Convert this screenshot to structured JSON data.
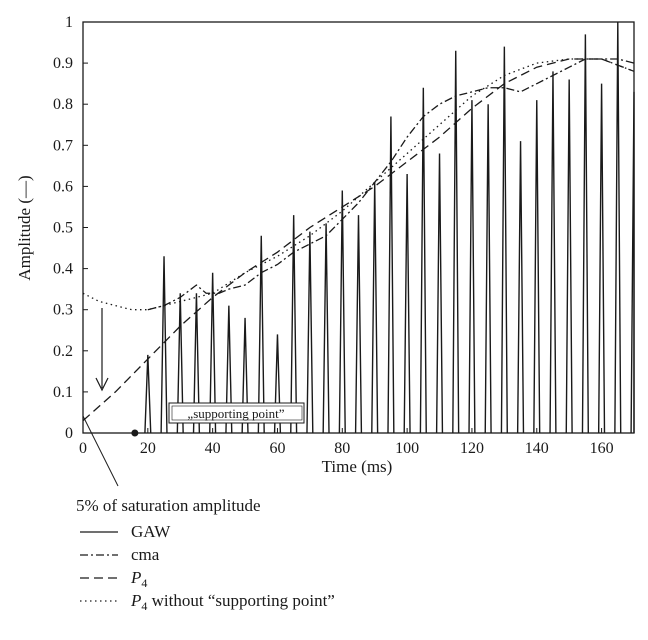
{
  "chart_data": {
    "type": "line",
    "xlabel": "Time (ms)",
    "ylabel": "Amplitude (—)",
    "xlim": [
      0,
      170
    ],
    "ylim": [
      0,
      1
    ],
    "x_ticks": [
      "0",
      "20",
      "40",
      "60",
      "80",
      "100",
      "120",
      "140",
      "160"
    ],
    "y_ticks": [
      "0",
      "0.1",
      "0.2",
      "0.3",
      "0.4",
      "0.5",
      "0.6",
      "0.7",
      "0.8",
      "0.9",
      "1"
    ],
    "grid": false,
    "legend_position": "below",
    "annotations": {
      "saturation": "5% of saturation amplitude",
      "supporting_point": "„supporting point”",
      "supporting_point_xy": [
        16,
        0
      ]
    },
    "series": [
      {
        "name": "GAW",
        "style": "solid",
        "pulses": [
          [
            20,
            0.19
          ],
          [
            25,
            0.43
          ],
          [
            30,
            0.34
          ],
          [
            35,
            0.34
          ],
          [
            40,
            0.39
          ],
          [
            45,
            0.31
          ],
          [
            50,
            0.28
          ],
          [
            55,
            0.48
          ],
          [
            60,
            0.24
          ],
          [
            65,
            0.53
          ],
          [
            70,
            0.49
          ],
          [
            75,
            0.51
          ],
          [
            80,
            0.59
          ],
          [
            85,
            0.53
          ],
          [
            90,
            0.61
          ],
          [
            95,
            0.77
          ],
          [
            100,
            0.63
          ],
          [
            105,
            0.84
          ],
          [
            110,
            0.68
          ],
          [
            115,
            0.93
          ],
          [
            120,
            0.81
          ],
          [
            125,
            0.8
          ],
          [
            130,
            0.94
          ],
          [
            135,
            0.71
          ],
          [
            140,
            0.81
          ],
          [
            145,
            0.88
          ],
          [
            150,
            0.86
          ],
          [
            155,
            0.97
          ],
          [
            160,
            0.85
          ],
          [
            165,
            1.0
          ],
          [
            170,
            0.83
          ]
        ]
      },
      {
        "name": "cma",
        "style": "dash-dot",
        "points": [
          [
            20,
            0.3
          ],
          [
            25,
            0.31
          ],
          [
            30,
            0.33
          ],
          [
            35,
            0.36
          ],
          [
            38,
            0.34
          ],
          [
            42,
            0.34
          ],
          [
            45,
            0.35
          ],
          [
            50,
            0.36
          ],
          [
            55,
            0.39
          ],
          [
            60,
            0.41
          ],
          [
            65,
            0.44
          ],
          [
            70,
            0.46
          ],
          [
            75,
            0.48
          ],
          [
            80,
            0.52
          ],
          [
            85,
            0.56
          ],
          [
            90,
            0.61
          ],
          [
            95,
            0.66
          ],
          [
            100,
            0.72
          ],
          [
            105,
            0.77
          ],
          [
            110,
            0.8
          ],
          [
            115,
            0.82
          ],
          [
            120,
            0.83
          ],
          [
            125,
            0.84
          ],
          [
            130,
            0.84
          ],
          [
            135,
            0.83
          ],
          [
            140,
            0.85
          ],
          [
            145,
            0.87
          ],
          [
            150,
            0.89
          ],
          [
            155,
            0.91
          ],
          [
            160,
            0.91
          ],
          [
            165,
            0.91
          ],
          [
            170,
            0.9
          ]
        ]
      },
      {
        "name": "P4",
        "style": "dashed",
        "points": [
          [
            0,
            0.03
          ],
          [
            10,
            0.1
          ],
          [
            20,
            0.18
          ],
          [
            30,
            0.26
          ],
          [
            40,
            0.33
          ],
          [
            50,
            0.39
          ],
          [
            60,
            0.44
          ],
          [
            70,
            0.5
          ],
          [
            80,
            0.55
          ],
          [
            90,
            0.6
          ],
          [
            100,
            0.66
          ],
          [
            110,
            0.72
          ],
          [
            120,
            0.79
          ],
          [
            130,
            0.85
          ],
          [
            140,
            0.89
          ],
          [
            150,
            0.91
          ],
          [
            160,
            0.91
          ],
          [
            170,
            0.88
          ]
        ]
      },
      {
        "name": "P4 without “supporting point”",
        "style": "dotted",
        "points": [
          [
            0,
            0.34
          ],
          [
            5,
            0.32
          ],
          [
            10,
            0.31
          ],
          [
            15,
            0.3
          ],
          [
            20,
            0.3
          ],
          [
            25,
            0.31
          ],
          [
            30,
            0.32
          ],
          [
            40,
            0.34
          ],
          [
            50,
            0.39
          ],
          [
            60,
            0.43
          ],
          [
            70,
            0.48
          ],
          [
            80,
            0.54
          ],
          [
            90,
            0.61
          ],
          [
            100,
            0.68
          ],
          [
            110,
            0.75
          ],
          [
            120,
            0.82
          ],
          [
            130,
            0.87
          ],
          [
            140,
            0.9
          ],
          [
            150,
            0.91
          ],
          [
            160,
            0.91
          ],
          [
            170,
            0.88
          ]
        ]
      }
    ],
    "legend": [
      {
        "label": "GAW",
        "style": "solid"
      },
      {
        "label": "cma",
        "style": "dash-dot"
      },
      {
        "label": "P",
        "sub": "4",
        "suffix": "",
        "style": "dashed"
      },
      {
        "label": "P",
        "sub": "4",
        "suffix": " without “supporting point”",
        "style": "dotted"
      }
    ]
  }
}
